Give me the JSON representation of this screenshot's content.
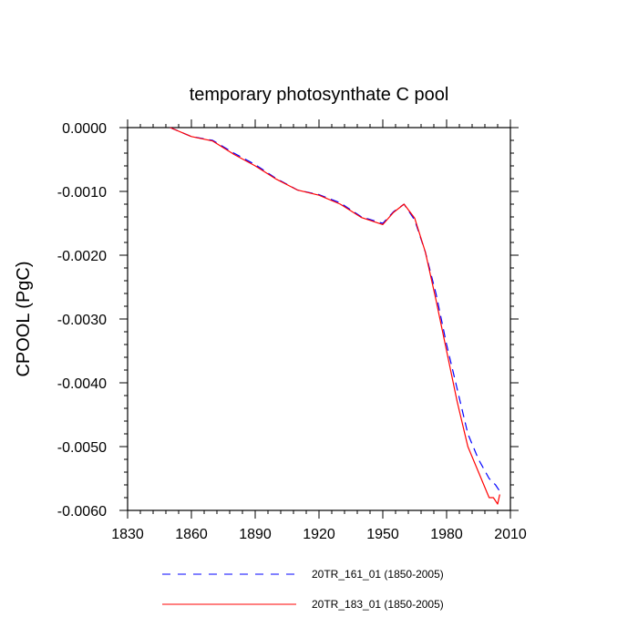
{
  "chart_data": {
    "type": "line",
    "title": "temporary photosynthate C pool",
    "xlabel": "",
    "ylabel": "CPOOL  (PgC)",
    "xlim": [
      1830,
      2010
    ],
    "ylim": [
      -0.006,
      0.0
    ],
    "x_ticks": [
      1830,
      1860,
      1890,
      1920,
      1950,
      1980,
      2010
    ],
    "x_tick_labels": [
      "1830",
      "1860",
      "1890",
      "1920",
      "1950",
      "1980",
      "2010"
    ],
    "y_ticks": [
      0.0,
      -0.001,
      -0.002,
      -0.003,
      -0.004,
      -0.005,
      -0.006
    ],
    "y_tick_labels": [
      "0.0000",
      "-0.0010",
      "-0.0020",
      "-0.0030",
      "-0.0040",
      "-0.0050",
      "-0.0060"
    ],
    "grid": false,
    "legend_position": "bottom",
    "series": [
      {
        "name": "20TR_161_01 (1850-2005)",
        "color": "#0000ff",
        "style": "dashed",
        "x": [
          1850,
          1860,
          1870,
          1880,
          1890,
          1900,
          1910,
          1920,
          1930,
          1940,
          1950,
          1955,
          1960,
          1965,
          1970,
          1975,
          1980,
          1985,
          1990,
          1995,
          2000,
          2003,
          2005
        ],
        "y": [
          0.0,
          -0.00014,
          -0.0002,
          -0.0004,
          -0.00058,
          -0.0008,
          -0.00098,
          -0.00105,
          -0.00118,
          -0.0014,
          -0.0015,
          -0.00132,
          -0.0012,
          -0.00145,
          -0.00195,
          -0.0026,
          -0.0034,
          -0.0041,
          -0.0048,
          -0.0052,
          -0.0055,
          -0.0056,
          -0.0057
        ]
      },
      {
        "name": "20TR_183_01 (1850-2005)",
        "color": "#ff0000",
        "style": "solid",
        "x": [
          1850,
          1860,
          1870,
          1880,
          1890,
          1900,
          1910,
          1920,
          1930,
          1940,
          1950,
          1955,
          1960,
          1965,
          1970,
          1975,
          1980,
          1985,
          1990,
          1995,
          2000,
          2002,
          2004,
          2005
        ],
        "y": [
          0.0,
          -0.00014,
          -0.00021,
          -0.00042,
          -0.0006,
          -0.00081,
          -0.00098,
          -0.00106,
          -0.0012,
          -0.00141,
          -0.00152,
          -0.00133,
          -0.0012,
          -0.00142,
          -0.00195,
          -0.0027,
          -0.0035,
          -0.0043,
          -0.005,
          -0.0054,
          -0.0058,
          -0.0058,
          -0.0059,
          -0.00575
        ]
      }
    ]
  }
}
